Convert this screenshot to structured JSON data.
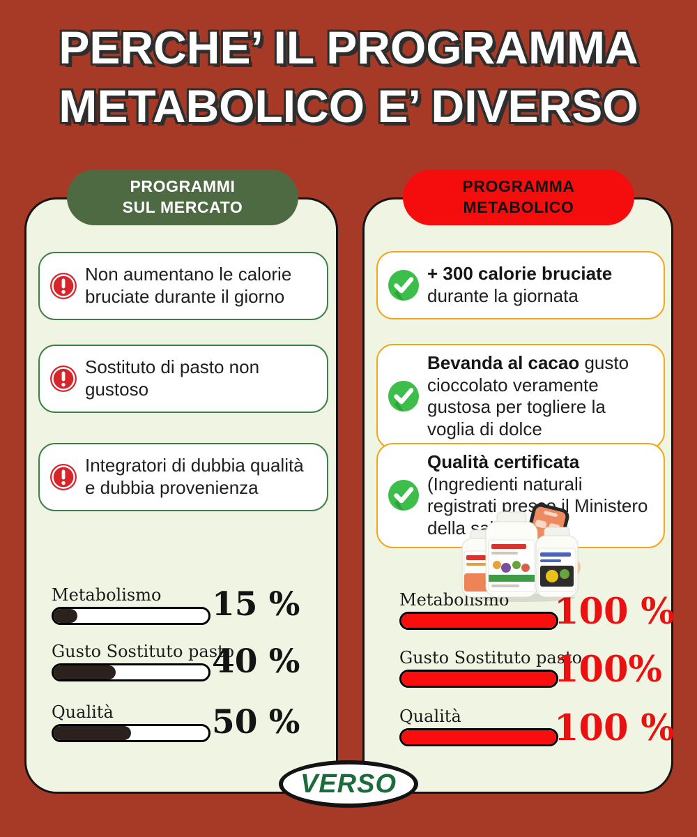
{
  "title": {
    "line1": "PERCHE’ IL PROGRAMMA",
    "line2": "METABOLICO E’ DIVERSO"
  },
  "left_column": {
    "header": {
      "line1": "PROGRAMMI",
      "line2": "SUL MERCATO"
    },
    "items": [
      {
        "icon": "warning-icon",
        "text": "Non aumentano le calorie bruciate durante il giorno"
      },
      {
        "icon": "warning-icon",
        "text": "Sostituto di pasto non gustoso"
      },
      {
        "icon": "warning-icon",
        "text": "Integratori di dubbia qualità e dubbia provenienza"
      }
    ],
    "stats": [
      {
        "label": "Metabolismo",
        "value": "15 %",
        "percent": 15
      },
      {
        "label": "Gusto Sostituto pasto",
        "value": "40 %",
        "percent": 40
      },
      {
        "label": "Qualità",
        "value": "50 %",
        "percent": 50
      }
    ]
  },
  "right_column": {
    "header": {
      "line1": "PROGRAMMA",
      "line2": "METABOLICO"
    },
    "items": [
      {
        "icon": "check-icon",
        "bold": "+ 300 calorie bruciate",
        "rest": " durante la giornata"
      },
      {
        "icon": "check-icon",
        "bold": "Bevanda al cacao",
        "rest": " gusto cioccolato veramente gustosa per togliere la voglia di dolce"
      },
      {
        "icon": "check-icon",
        "bold": "Qualità certificata",
        "rest": "(Ingredienti naturali registrati presso il Ministero della salute)"
      }
    ],
    "graphic": "supplement-bottles-and-phone-photo",
    "stats": [
      {
        "label": "Metabolismo",
        "value": "100 %",
        "percent": 100
      },
      {
        "label": "Gusto Sostituto pasto",
        "value": "100%",
        "percent": 100
      },
      {
        "label": "Qualità",
        "value": "100 %",
        "percent": 100
      }
    ]
  },
  "badge": {
    "label": "VERSO"
  },
  "colors": {
    "background": "#A63A26",
    "card": "#F0F4E2",
    "header_left": "#4E6A43",
    "header_right": "#F50D0D",
    "item_border_left": "#3E8048",
    "item_border_right": "#F2A71B",
    "warning_icon": "#D7252C",
    "check_icon": "#3DBE4B",
    "bar_fill_left": "#2B221D",
    "bar_fill_right": "#FA0D0D",
    "value_left": "#141414",
    "value_right": "#EC1111",
    "badge_text": "#1C6B3C"
  }
}
